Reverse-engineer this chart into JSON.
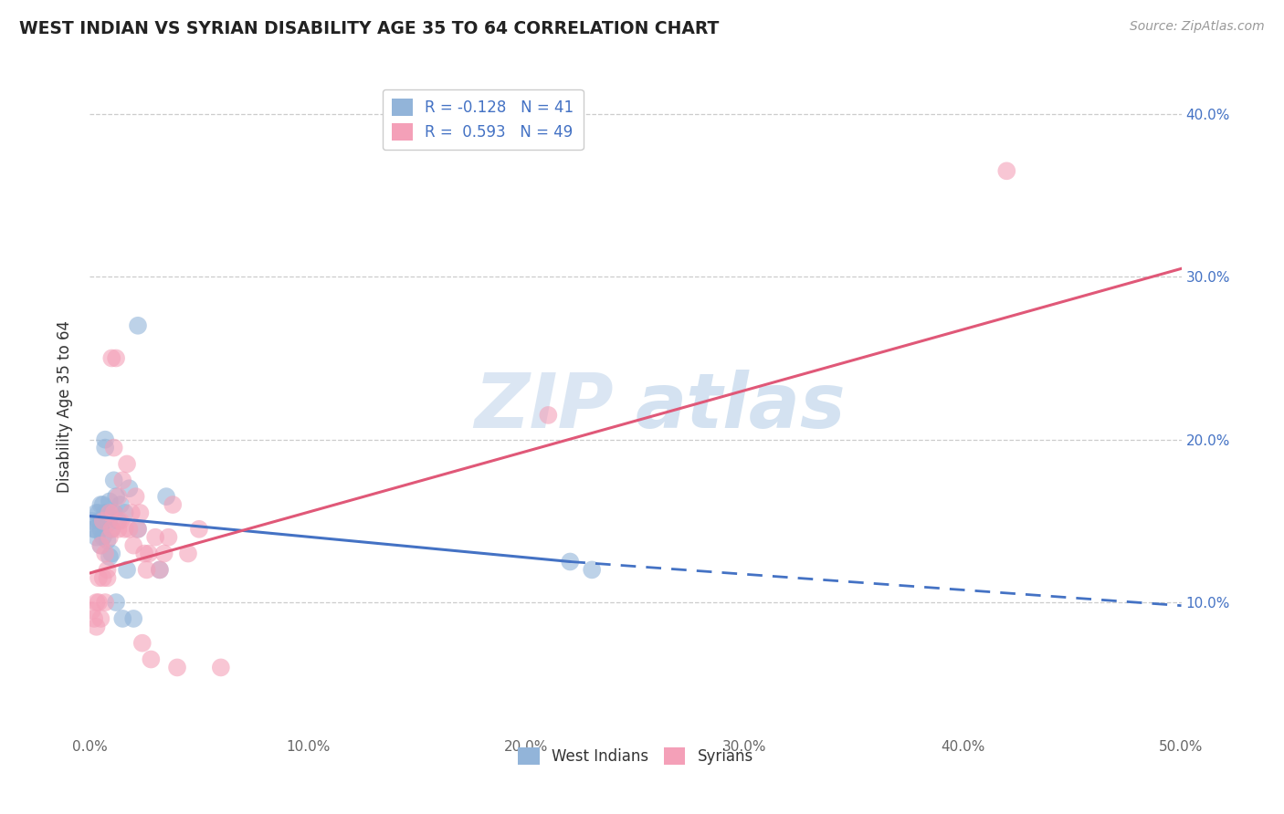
{
  "title": "WEST INDIAN VS SYRIAN DISABILITY AGE 35 TO 64 CORRELATION CHART",
  "source": "Source: ZipAtlas.com",
  "ylabel": "Disability Age 35 to 64",
  "watermark_part1": "ZIP",
  "watermark_part2": "atlas",
  "legend1_label": "West Indians",
  "legend2_label": "Syrians",
  "r1": -0.128,
  "n1": 41,
  "r2": 0.593,
  "n2": 49,
  "blue_color": "#92b4d9",
  "pink_color": "#f4a0b8",
  "blue_line_color": "#4472C4",
  "pink_line_color": "#e05878",
  "xlim": [
    0.0,
    0.5
  ],
  "ylim": [
    0.02,
    0.42
  ],
  "y_ticks": [
    0.1,
    0.2,
    0.3,
    0.4
  ],
  "x_ticks": [
    0.0,
    0.1,
    0.2,
    0.3,
    0.4,
    0.5
  ],
  "blue_line_y0": 0.153,
  "blue_line_y_end_solid": 0.125,
  "blue_line_x_solid_end": 0.22,
  "blue_line_y_end": 0.098,
  "pink_line_y0": 0.118,
  "pink_line_y_end": 0.305,
  "west_indian_x": [
    0.001,
    0.002,
    0.002,
    0.003,
    0.003,
    0.004,
    0.004,
    0.005,
    0.005,
    0.005,
    0.006,
    0.006,
    0.006,
    0.007,
    0.007,
    0.007,
    0.008,
    0.008,
    0.008,
    0.009,
    0.009,
    0.009,
    0.01,
    0.01,
    0.011,
    0.011,
    0.012,
    0.012,
    0.013,
    0.014,
    0.015,
    0.016,
    0.017,
    0.018,
    0.02,
    0.022,
    0.022,
    0.032,
    0.035,
    0.22,
    0.23
  ],
  "west_indian_y": [
    0.15,
    0.145,
    0.145,
    0.155,
    0.14,
    0.15,
    0.155,
    0.16,
    0.145,
    0.135,
    0.16,
    0.15,
    0.14,
    0.2,
    0.195,
    0.155,
    0.155,
    0.148,
    0.138,
    0.162,
    0.152,
    0.128,
    0.145,
    0.13,
    0.175,
    0.155,
    0.165,
    0.1,
    0.15,
    0.16,
    0.09,
    0.155,
    0.12,
    0.17,
    0.09,
    0.145,
    0.27,
    0.12,
    0.165,
    0.125,
    0.12
  ],
  "syrian_x": [
    0.001,
    0.002,
    0.003,
    0.003,
    0.004,
    0.004,
    0.005,
    0.005,
    0.006,
    0.006,
    0.007,
    0.007,
    0.008,
    0.008,
    0.009,
    0.009,
    0.01,
    0.01,
    0.011,
    0.011,
    0.012,
    0.013,
    0.013,
    0.014,
    0.015,
    0.016,
    0.017,
    0.018,
    0.019,
    0.02,
    0.021,
    0.022,
    0.023,
    0.024,
    0.025,
    0.026,
    0.027,
    0.028,
    0.03,
    0.032,
    0.034,
    0.036,
    0.038,
    0.04,
    0.045,
    0.05,
    0.06,
    0.21,
    0.42
  ],
  "syrian_y": [
    0.095,
    0.09,
    0.1,
    0.085,
    0.115,
    0.1,
    0.135,
    0.09,
    0.15,
    0.115,
    0.13,
    0.1,
    0.12,
    0.115,
    0.14,
    0.155,
    0.25,
    0.145,
    0.195,
    0.155,
    0.25,
    0.165,
    0.145,
    0.15,
    0.175,
    0.145,
    0.185,
    0.145,
    0.155,
    0.135,
    0.165,
    0.145,
    0.155,
    0.075,
    0.13,
    0.12,
    0.13,
    0.065,
    0.14,
    0.12,
    0.13,
    0.14,
    0.16,
    0.06,
    0.13,
    0.145,
    0.06,
    0.215,
    0.365
  ]
}
